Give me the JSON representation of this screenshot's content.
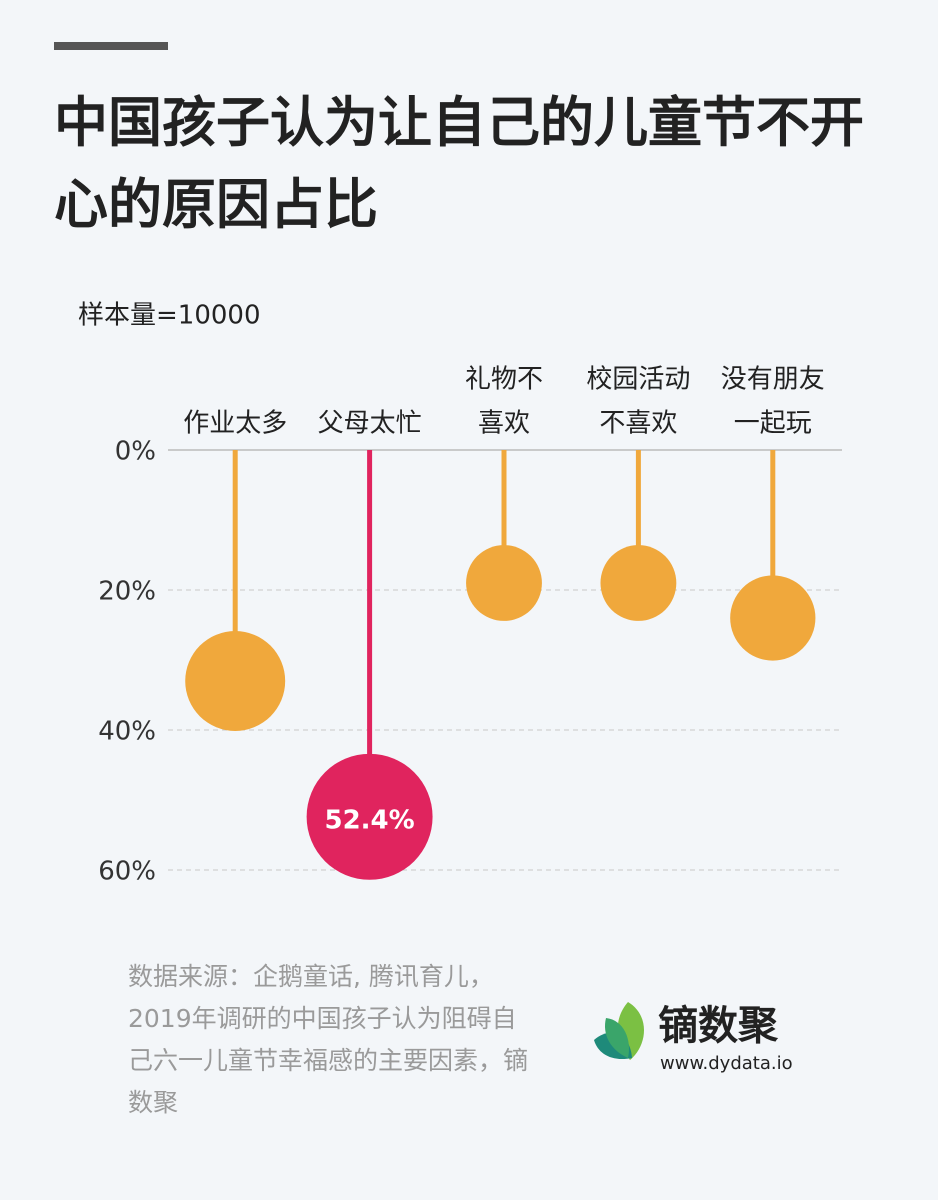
{
  "chart_data": {
    "type": "lollipop",
    "title": "中国孩子认为让自己的儿童节不开心的原因占比",
    "subtitle": "样本量=10000",
    "categories": [
      [
        "作业太多"
      ],
      [
        "父母太忙"
      ],
      [
        "礼物不",
        "喜欢"
      ],
      [
        "校园活动",
        "不喜欢"
      ],
      [
        "没有朋友",
        "一起玩"
      ]
    ],
    "values": [
      33,
      52.4,
      19,
      19,
      24
    ],
    "value_labels": [
      null,
      "52.4%",
      null,
      null,
      null
    ],
    "colors": [
      "#f0a83c",
      "#e0245e",
      "#f0a83c",
      "#f0a83c",
      "#f0a83c"
    ],
    "ylim": [
      0,
      60
    ],
    "yticks": [
      {
        "value": 0,
        "label": "0%"
      },
      {
        "value": 20,
        "label": "20%"
      },
      {
        "value": 40,
        "label": "40%"
      },
      {
        "value": 60,
        "label": "60%"
      }
    ],
    "grid": true,
    "source": "数据来源：企鹅童话, 腾讯育儿，2019年调研的中国孩子认为阻碍自己六一儿童节幸福感的主要因素，镝数聚",
    "brand": "镝数聚",
    "url": "www.dydata.io"
  }
}
